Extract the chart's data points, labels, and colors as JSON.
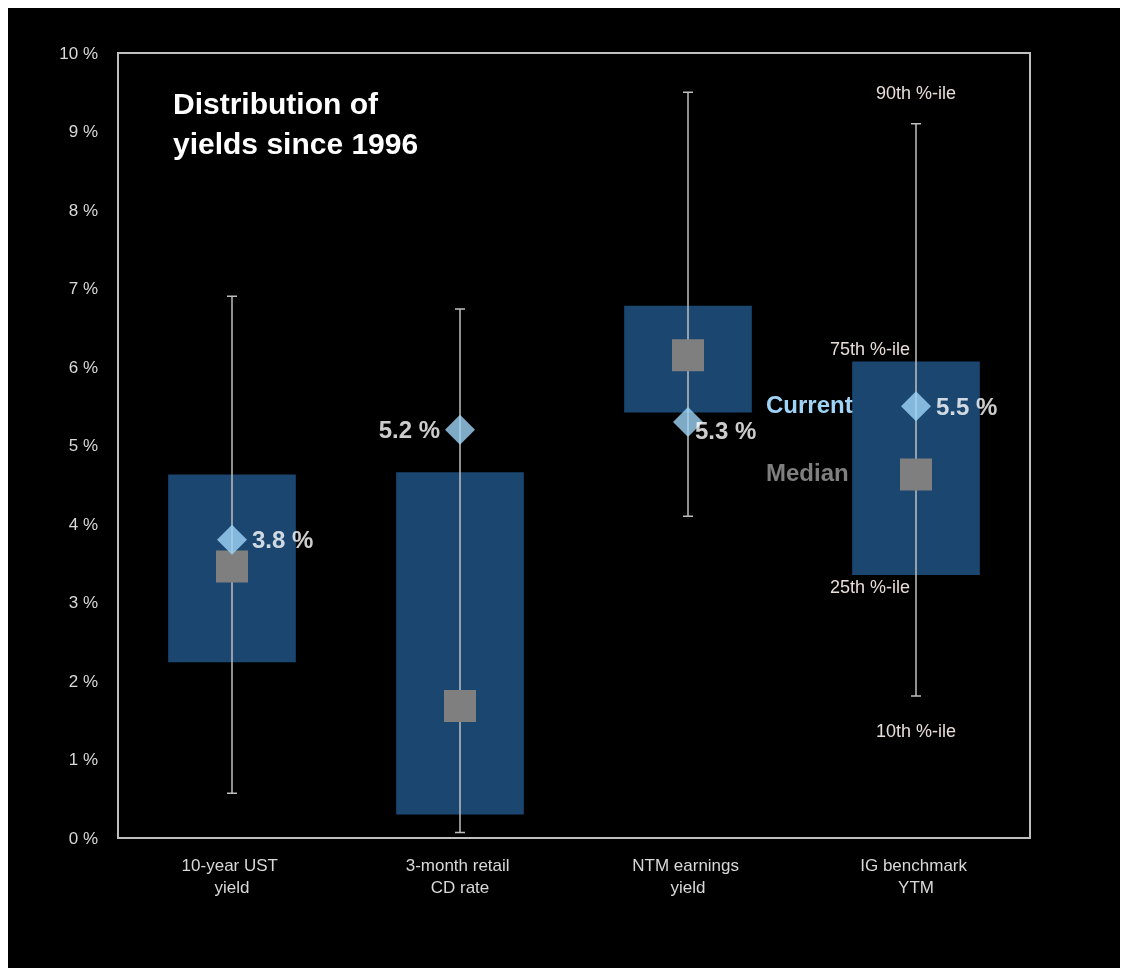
{
  "chart_data": {
    "type": "box",
    "title": "Distribution of yields since 1996",
    "categories": [
      "10-year UST yield",
      "3-month retail CD rate",
      "NTM earnings yield",
      "IG benchmark YTM"
    ],
    "ylim": [
      0,
      10
    ],
    "yticks": [
      {
        "value": 0,
        "label": "0 %"
      },
      {
        "value": 1,
        "label": "1 %"
      },
      {
        "value": 2,
        "label": "2 %"
      },
      {
        "value": 3,
        "label": "3 %"
      },
      {
        "value": 4,
        "label": "4 %"
      },
      {
        "value": 5,
        "label": "5 %"
      },
      {
        "value": 6,
        "label": "6 %"
      },
      {
        "value": 7,
        "label": "7 %"
      },
      {
        "value": 8,
        "label": "8 %"
      },
      {
        "value": 9,
        "label": "9 %"
      },
      {
        "value": 10,
        "label": "10 %"
      }
    ],
    "series": [
      {
        "type": "box",
        "color": "#1a4670",
        "boxes": [
          {
            "low": 0.57,
            "q1": 2.24,
            "median": 3.46,
            "q3": 4.63,
            "high": 6.9
          },
          {
            "low": 0.07,
            "q1": 0.3,
            "median": 1.68,
            "q3": 4.66,
            "high": 6.74
          },
          {
            "low": 4.1,
            "q1": 5.42,
            "median": 6.15,
            "q3": 6.78,
            "high": 9.5
          },
          {
            "low": 1.81,
            "q1": 3.35,
            "median": 4.63,
            "q3": 6.07,
            "high": 9.1
          }
        ]
      },
      {
        "type": "scatter",
        "color": "#9fd4f7",
        "marker": "diamond",
        "x": [
          "10-year UST yield",
          "3-month retail CD rate",
          "NTM earnings yield",
          "IG benchmark YTM"
        ],
        "values": [
          3.8,
          5.2,
          5.3,
          5.5
        ],
        "value_labels": [
          "3.8 %",
          "5.2 %",
          "5.3 %",
          "5.5 %"
        ]
      }
    ],
    "annotations": [
      {
        "text": "90th %-ile",
        "x": "IG benchmark YTM",
        "y": 9.1
      },
      {
        "text": "75th %-ile",
        "x": "IG benchmark YTM",
        "y": 6.07
      },
      {
        "text": "Current",
        "x": "IG benchmark YTM",
        "y": 5.5
      },
      {
        "text": "Median",
        "x": "IG benchmark YTM",
        "y": 4.63
      },
      {
        "text": "25th %-ile",
        "x": "IG benchmark YTM",
        "y": 3.35
      },
      {
        "text": "10th %-ile",
        "x": "IG benchmark YTM",
        "y": 1.81
      }
    ]
  }
}
